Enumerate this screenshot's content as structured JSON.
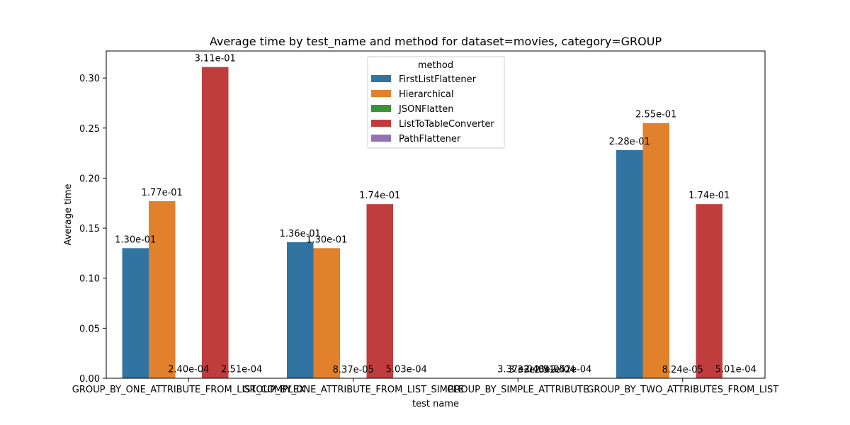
{
  "chart_data": {
    "type": "bar",
    "title": "Average time by test_name and method for dataset=movies, category=GROUP",
    "xlabel": "test name",
    "ylabel": "Average time",
    "ylim": [
      0,
      0.327
    ],
    "yticks": [
      "0.00",
      "0.05",
      "0.10",
      "0.15",
      "0.20",
      "0.25",
      "0.30"
    ],
    "categories": [
      "GROUP_BY_ONE_ATTRIBUTE_FROM_LIST_COMPLEX",
      "GROUP_BY_ONE_ATTRIBUTE_FROM_LIST_SIMPLE",
      "GROUP_BY_SIMPLE_ATTRIBUTE",
      "GROUP_BY_TWO_ATTRIBUTES_FROM_LIST"
    ],
    "legend": {
      "title": "method",
      "placement": "upper center"
    },
    "grid": false,
    "series": [
      {
        "name": "FirstListFlattener",
        "color": "#3274a1",
        "values": [
          0.13,
          0.136,
          null,
          0.228
        ],
        "labels": [
          "1.30e-01",
          "1.36e-01",
          "",
          "2.28e-01"
        ]
      },
      {
        "name": "Hierarchical",
        "color": "#e1812c",
        "values": [
          0.177,
          0.13,
          null,
          0.255
        ],
        "labels": [
          "1.77e-01",
          "1.30e-01",
          "",
          "2.55e-01"
        ]
      },
      {
        "name": "JSONFlatten",
        "color": "#3a923a",
        "values": [
          0.00024,
          8.37e-05,
          0.000337,
          8.24e-05
        ],
        "labels": [
          "2.40e-04",
          "8.37e-05",
          "3.37e-04",
          "8.24e-05"
        ]
      },
      {
        "name": "ListToTableConverter",
        "color": "#c03d3e",
        "values": [
          0.311,
          0.174,
          0.000248,
          0.174
        ],
        "labels": [
          "3.11e-01",
          "1.74e-01",
          "2.48e-04",
          "1.74e-01"
        ]
      },
      {
        "name": "PathFlattener",
        "color": "#9372b2",
        "values": [
          0.000251,
          0.000503,
          0.000252,
          0.000501
        ],
        "labels": [
          "2.51e-04",
          "5.03e-04",
          "2.52e-04",
          "5.01e-04"
        ]
      }
    ],
    "extra_labels": [
      {
        "category": 2,
        "text": "3.33e-04"
      },
      {
        "category": 2,
        "text": "2.51e-04"
      }
    ]
  }
}
